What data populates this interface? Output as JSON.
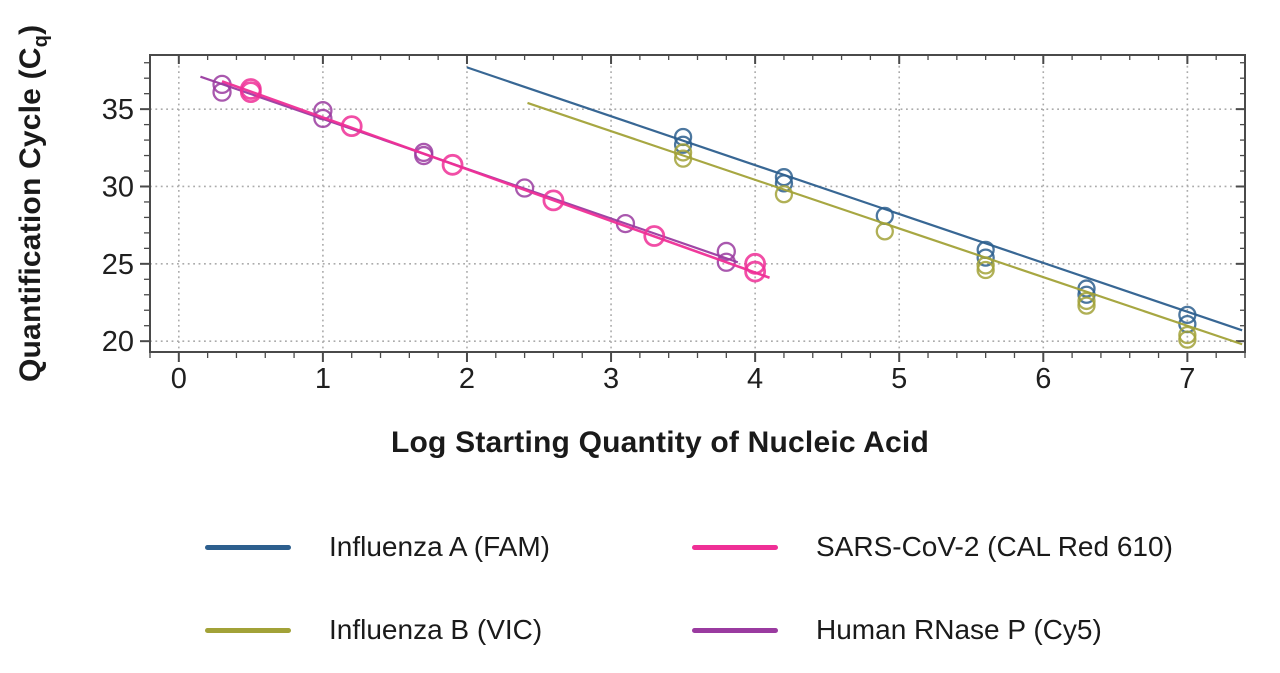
{
  "axes": {
    "x_title": "Log Starting Quantity of Nucleic Acid",
    "y_title_main": "Quantification Cycle (C",
    "y_title_sub": "q",
    "y_title_close": ")"
  },
  "style": {
    "spine_color": "#4a4a4a",
    "grid_color": "#ababab",
    "tick_label_color": "#1f1f1f",
    "background": "#ffffff"
  },
  "chart_data": {
    "type": "scatter",
    "title": "",
    "xlabel": "Log Starting Quantity of Nucleic Acid",
    "ylabel": "Quantification Cycle (Cq)",
    "xlim": [
      -0.2,
      7.4
    ],
    "ylim": [
      19.3,
      38.5
    ],
    "x_ticks": [
      0,
      1,
      2,
      3,
      4,
      5,
      6,
      7
    ],
    "y_ticks": [
      20,
      25,
      30,
      35
    ],
    "x_minor_step": 0.2,
    "y_minor_step": 1,
    "grid": true,
    "grid_style": "dotted",
    "legend_position": "bottom",
    "series": [
      {
        "name": "Influenza A (FAM)",
        "color": "#2d5f8e",
        "marker": "open-circle",
        "marker_radius": 8,
        "marker_stroke": 2.3,
        "line_width": 2.2,
        "points": [
          [
            3.5,
            33.2
          ],
          [
            3.5,
            32.7
          ],
          [
            4.2,
            30.6
          ],
          [
            4.2,
            30.2
          ],
          [
            4.9,
            28.1
          ],
          [
            5.6,
            25.9
          ],
          [
            5.6,
            25.4
          ],
          [
            6.3,
            23.4
          ],
          [
            6.3,
            23.0
          ],
          [
            7.0,
            21.7
          ],
          [
            7.0,
            21.1
          ]
        ],
        "trendline": {
          "x1": 2.0,
          "cq1": 37.7,
          "x2": 7.38,
          "cq2": 20.7
        }
      },
      {
        "name": "Influenza B (VIC)",
        "color": "#a2a238",
        "marker": "open-circle",
        "marker_radius": 8,
        "marker_stroke": 2.3,
        "line_width": 2.2,
        "points": [
          [
            3.5,
            32.2
          ],
          [
            3.5,
            31.8
          ],
          [
            4.2,
            29.5
          ],
          [
            4.9,
            27.1
          ],
          [
            5.6,
            24.9
          ],
          [
            5.6,
            24.6
          ],
          [
            6.3,
            22.6
          ],
          [
            6.3,
            22.3
          ],
          [
            7.0,
            20.4
          ],
          [
            7.0,
            20.1
          ]
        ],
        "trendline": {
          "x1": 2.42,
          "cq1": 35.4,
          "x2": 7.38,
          "cq2": 19.8
        }
      },
      {
        "name": "Human RNase P (Cy5)",
        "color": "#9a3ba0",
        "marker": "open-circle",
        "marker_radius": 8.5,
        "marker_stroke": 2.3,
        "line_width": 2.2,
        "points": [
          [
            0.3,
            36.6
          ],
          [
            0.3,
            36.1
          ],
          [
            1.0,
            34.9
          ],
          [
            1.0,
            34.4
          ],
          [
            1.7,
            32.2
          ],
          [
            1.7,
            32.0
          ],
          [
            2.4,
            29.9
          ],
          [
            3.1,
            27.6
          ],
          [
            3.8,
            25.8
          ],
          [
            3.8,
            25.1
          ]
        ],
        "trendline": {
          "x1": 0.15,
          "cq1": 37.1,
          "x2": 3.88,
          "cq2": 25.1
        }
      },
      {
        "name": "SARS-CoV-2 (CAL Red 610)",
        "color": "#ef2f96",
        "marker": "open-circle",
        "marker_radius": 9.5,
        "marker_stroke": 2.8,
        "line_width": 2.6,
        "points": [
          [
            0.5,
            36.3
          ],
          [
            0.5,
            36.1
          ],
          [
            1.2,
            33.9
          ],
          [
            1.9,
            31.4
          ],
          [
            2.6,
            29.1
          ],
          [
            3.3,
            26.8
          ],
          [
            4.0,
            25.0
          ],
          [
            4.0,
            24.5
          ]
        ],
        "trendline": {
          "x1": 0.3,
          "cq1": 36.8,
          "x2": 4.1,
          "cq2": 24.1
        }
      }
    ]
  },
  "legend": {
    "items": [
      {
        "label": "Influenza A (FAM)",
        "color": "#2d5f8e"
      },
      {
        "label": "SARS-CoV-2 (CAL Red 610)",
        "color": "#ef2f96"
      },
      {
        "label": "Influenza B (VIC)",
        "color": "#a2a238"
      },
      {
        "label": "Human RNase P (Cy5)",
        "color": "#9a3ba0"
      }
    ]
  }
}
